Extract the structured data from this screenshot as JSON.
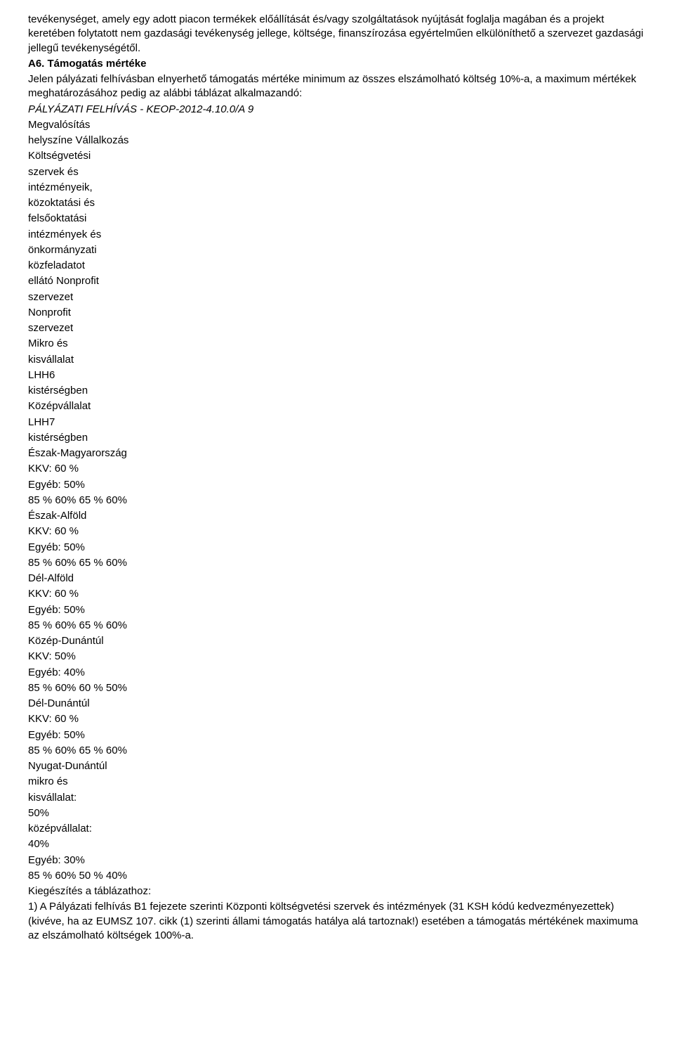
{
  "intro": {
    "p1": "tevékenységet, amely egy adott piacon termékek előállítását és/vagy szolgáltatások nyújtását foglalja magában és a projekt keretében folytatott nem gazdasági tevékenység jellege, költsége, finanszírozása egyértelműen elkülöníthető a szervezet gazdasági jellegű tevékenységétől."
  },
  "section": {
    "heading": "A6. Támogatás mértéke",
    "p2": "Jelen pályázati felhívásban elnyerhető támogatás mértéke minimum az összes elszámolható költség 10%-a, a maximum mértékek meghatározásához pedig az alábbi táblázat alkalmazandó:",
    "ref": "PÁLYÁZATI FELHÍVÁS - KEOP-2012-4.10.0/A 9"
  },
  "lines": [
    "Megvalósítás",
    "helyszíne Vállalkozás",
    "Költségvetési",
    "szervek és",
    "intézményeik,",
    "közoktatási és",
    "felsőoktatási",
    "intézmények és",
    "önkormányzati",
    "közfeladatot",
    "ellátó Nonprofit",
    "szervezet",
    "Nonprofit",
    "szervezet",
    "Mikro és",
    "kisvállalat",
    "LHH6",
    "kistérségben",
    "Középvállalat",
    "LHH7",
    "kistérségben",
    "Észak-Magyarország",
    "KKV: 60 %",
    "Egyéb: 50%",
    "85 % 60% 65 % 60%",
    "Észak-Alföld",
    "KKV: 60 %",
    "Egyéb: 50%",
    "85 % 60% 65 % 60%",
    "Dél-Alföld",
    "KKV: 60 %",
    "Egyéb: 50%",
    "85 % 60% 65 % 60%",
    "Közép-Dunántúl",
    "KKV: 50%",
    "Egyéb: 40%",
    "85 % 60% 60 % 50%",
    "Dél-Dunántúl",
    "KKV: 60 %",
    "Egyéb: 50%",
    "85 % 60% 65 % 60%",
    "Nyugat-Dunántúl",
    "mikro és",
    "kisvállalat:",
    "50%",
    "középvállalat:",
    "40%",
    "Egyéb: 30%",
    "85 % 60% 50 % 40%",
    "Kiegészítés a táblázathoz:"
  ],
  "footer": {
    "p3": "1) A Pályázati felhívás B1 fejezete szerinti Központi költségvetési szervek és intézmények (31 KSH kódú kedvezményezettek) (kivéve, ha az EUMSZ 107. cikk (1) szerinti állami támogatás hatálya alá tartoznak!) esetében a támogatás mértékének maximuma az elszámolható költségek 100%-a."
  }
}
